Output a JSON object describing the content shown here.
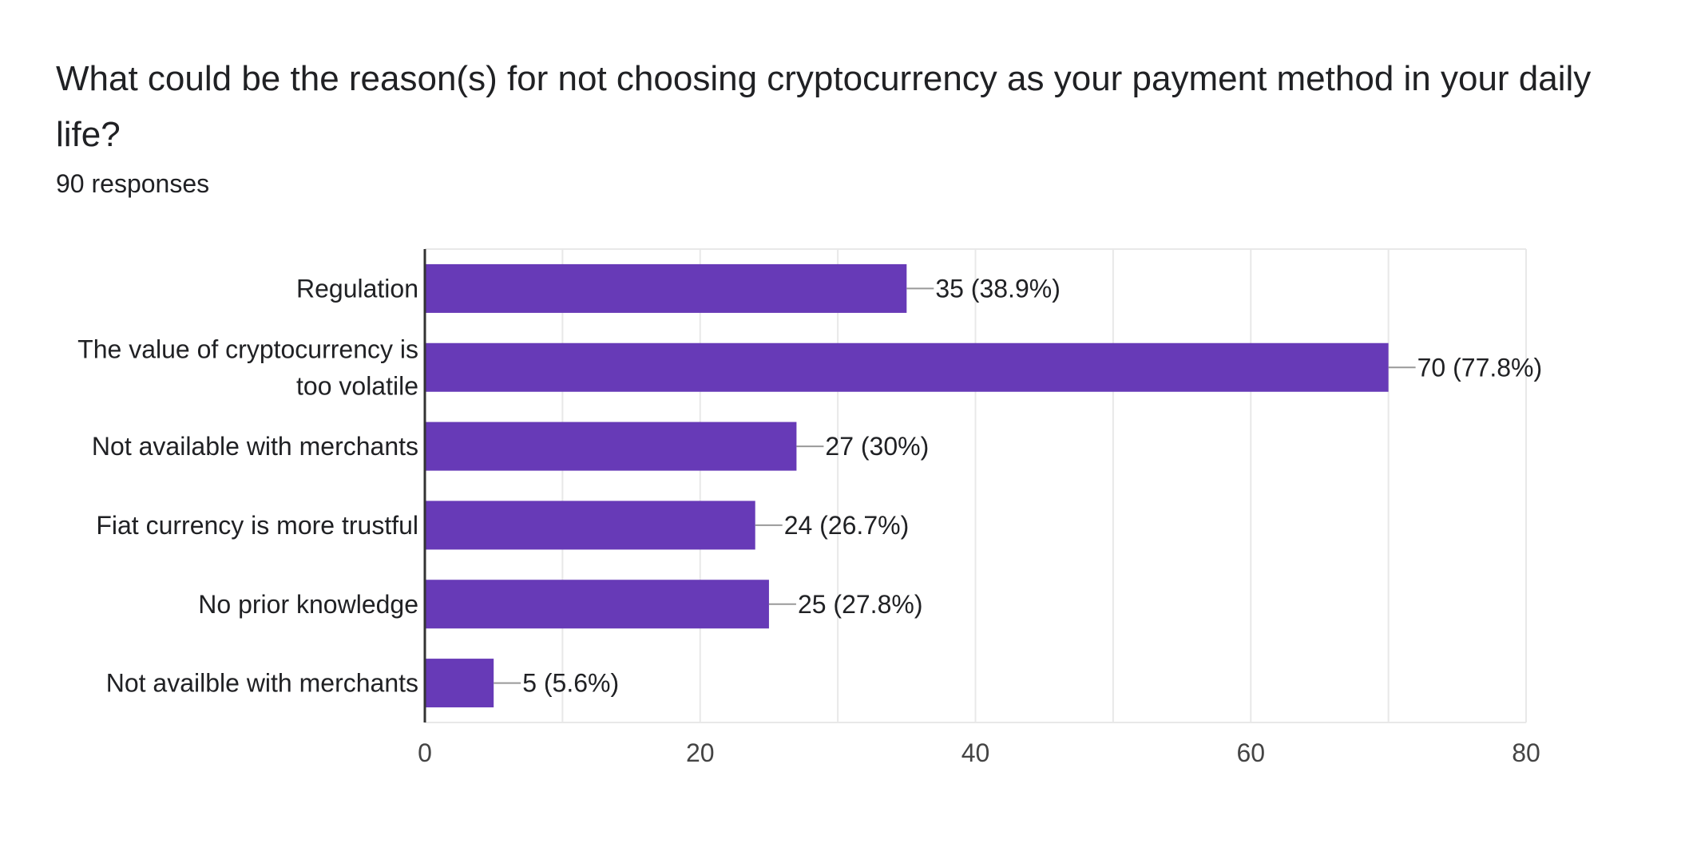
{
  "header": {
    "title": "What could be the reason(s) for not choosing cryptocurrency as your payment method in your daily life?",
    "subtitle": "90 responses"
  },
  "colors": {
    "bar": "#673ab7",
    "grid": "#e8e8e8",
    "axis": "#333333",
    "text": "#202124",
    "tick": "#444444",
    "leader": "#999999"
  },
  "chart_data": {
    "type": "bar",
    "orientation": "horizontal",
    "categories": [
      [
        "Regulation"
      ],
      [
        "The value of cryptocurrency is",
        "too volatile"
      ],
      [
        "Not available with merchants"
      ],
      [
        "Fiat currency is more trustful"
      ],
      [
        "No prior knowledge"
      ],
      [
        "Not availble with merchants"
      ]
    ],
    "values": [
      35,
      70,
      27,
      24,
      25,
      5
    ],
    "data_labels": [
      "35 (38.9%)",
      "70 (77.8%)",
      "27 (30%)",
      "24 (26.7%)",
      "25 (27.8%)",
      "5 (5.6%)"
    ],
    "xlim": [
      0,
      80
    ],
    "xticks": [
      0,
      20,
      40,
      60,
      80
    ],
    "minor_grid_step": 10,
    "grid": true,
    "title": "What could be the reason(s) for not choosing cryptocurrency as your payment method in your daily life?",
    "subtitle": "90 responses"
  }
}
